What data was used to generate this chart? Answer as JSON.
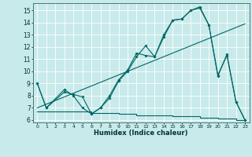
{
  "background_color": "#c8eaea",
  "grid_color": "#aaaaaa",
  "line_color": "#006666",
  "xlabel": "Humidex (Indice chaleur)",
  "xlim": [
    -0.5,
    23.5
  ],
  "ylim": [
    5.8,
    15.6
  ],
  "yticks": [
    6,
    7,
    8,
    9,
    10,
    11,
    12,
    13,
    14,
    15
  ],
  "xticks": [
    0,
    1,
    2,
    3,
    4,
    5,
    6,
    7,
    8,
    9,
    10,
    11,
    12,
    13,
    14,
    15,
    16,
    17,
    18,
    19,
    20,
    21,
    22,
    23
  ],
  "line1": {
    "x": [
      0,
      1,
      3,
      4,
      5,
      6,
      7,
      8,
      9,
      10,
      11,
      12,
      13,
      14,
      15,
      16,
      17,
      18,
      19,
      20,
      21,
      22,
      23
    ],
    "y": [
      9,
      7,
      8.5,
      8,
      7,
      6.5,
      7,
      7.8,
      9.2,
      10,
      11.2,
      12.1,
      11.2,
      12.8,
      14.2,
      14.3,
      15.0,
      15.2,
      13.8,
      9.7,
      11.3,
      7.5,
      6
    ]
  },
  "line2": {
    "x": [
      0,
      1,
      3,
      4,
      5,
      6,
      7,
      8,
      9,
      10,
      11,
      12,
      13,
      14,
      15,
      16,
      17,
      18,
      19,
      20,
      21,
      22,
      23
    ],
    "y": [
      9,
      7,
      8.3,
      8.1,
      7.9,
      6.5,
      7.0,
      8.0,
      9.3,
      10.1,
      11.5,
      11.3,
      11.2,
      13.0,
      14.2,
      14.3,
      15.0,
      15.3,
      13.8,
      9.6,
      11.4,
      7.5,
      6
    ]
  },
  "line3_diagonal": {
    "x": [
      0,
      23
    ],
    "y": [
      7.0,
      13.9
    ]
  },
  "flat_line": {
    "x": [
      0,
      1,
      2,
      3,
      4,
      5,
      6,
      7,
      8,
      9,
      10,
      11,
      12,
      13,
      14,
      15,
      16,
      17,
      18,
      19,
      20,
      21,
      22,
      23
    ],
    "y": [
      6.7,
      6.7,
      6.7,
      6.7,
      6.7,
      6.7,
      6.6,
      6.6,
      6.6,
      6.5,
      6.5,
      6.4,
      6.4,
      6.4,
      6.4,
      6.3,
      6.3,
      6.3,
      6.2,
      6.2,
      6.1,
      6.1,
      6.0,
      6.0
    ]
  }
}
